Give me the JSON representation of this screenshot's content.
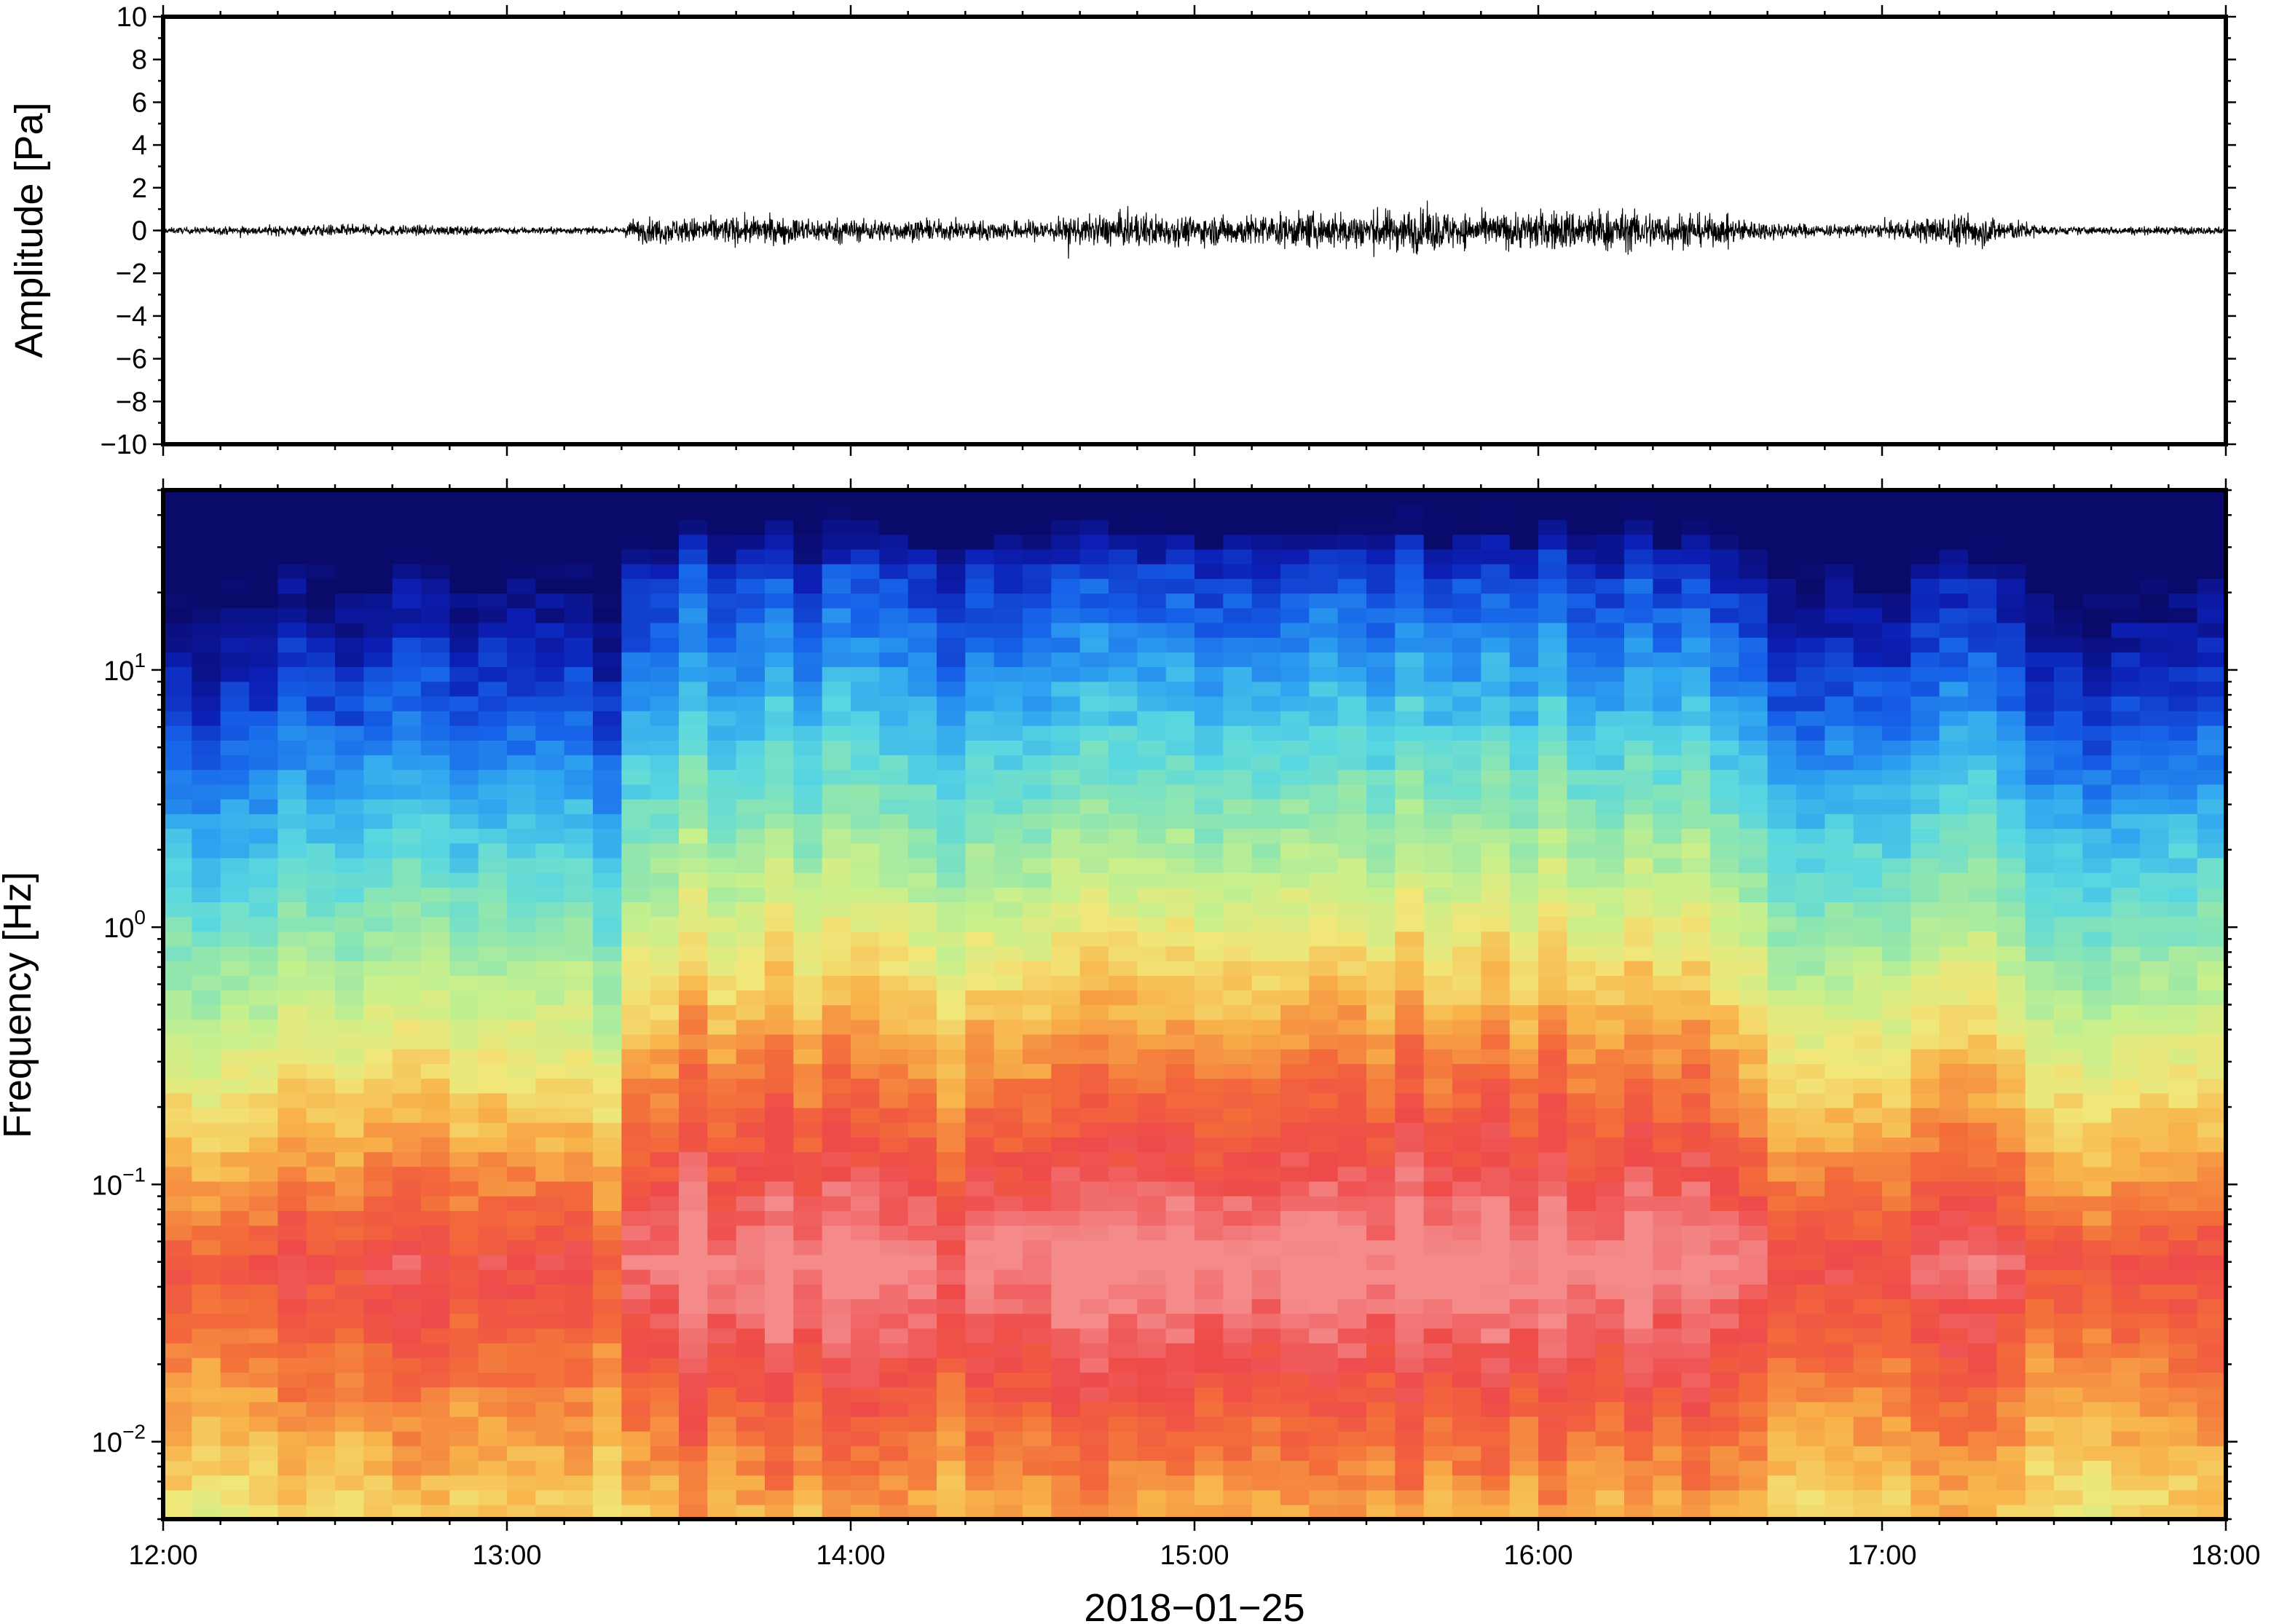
{
  "chart_data": [
    {
      "type": "line",
      "ylabel": "Amplitude [Pa]",
      "ylim": [
        -10,
        10
      ],
      "yticks": [
        "10",
        "8",
        "6",
        "4",
        "2",
        "0",
        "−2",
        "−4",
        "−6",
        "−8",
        "−10"
      ],
      "xlim": [
        "12:00",
        "18:00"
      ],
      "grid": false,
      "series_color": "#000000",
      "envelope_minutes": [
        0,
        30,
        60,
        80,
        82,
        100,
        120,
        130,
        150,
        170,
        180,
        200,
        220,
        230,
        240,
        250,
        265,
        280,
        290,
        300,
        315,
        330,
        345,
        360
      ],
      "envelope_pa": [
        0.15,
        0.3,
        0.2,
        0.15,
        0.6,
        0.7,
        0.6,
        0.5,
        0.5,
        0.9,
        0.7,
        0.9,
        1.1,
        0.8,
        1.0,
        1.1,
        0.9,
        0.45,
        0.3,
        0.35,
        0.9,
        0.2,
        0.2,
        0.2
      ]
    },
    {
      "type": "heatmap",
      "ylabel": "Frequency [Hz]",
      "yscale": "log",
      "ylim_hz": [
        0.005,
        50
      ],
      "yticks": [
        {
          "value": 10,
          "base": "10",
          "exp": "1"
        },
        {
          "value": 1,
          "base": "10",
          "exp": "0"
        },
        {
          "value": 0.1,
          "base": "10",
          "exp": "−1"
        },
        {
          "value": 0.01,
          "base": "10",
          "exp": "−2"
        }
      ],
      "xticks": [
        "12:00",
        "13:00",
        "14:00",
        "15:00",
        "16:00",
        "17:00",
        "18:00"
      ],
      "xlabel": "2018−01−25",
      "colormap": [
        "#0a0a6b",
        "#0c1fb5",
        "#1661e8",
        "#2fa5f0",
        "#5ad8e0",
        "#8ee6b0",
        "#c8f08c",
        "#f2e678",
        "#f8b24a",
        "#f36b3a",
        "#ee4a4a",
        "#f48a8a"
      ],
      "activity_minutes": [
        0,
        30,
        60,
        80,
        82,
        100,
        120,
        130,
        150,
        170,
        180,
        200,
        220,
        230,
        240,
        250,
        265,
        280,
        290,
        300,
        315,
        330,
        345,
        360
      ],
      "activity_level": [
        0.2,
        0.35,
        0.25,
        0.2,
        0.85,
        0.9,
        0.85,
        0.75,
        0.75,
        0.95,
        0.85,
        1.0,
        1.0,
        0.95,
        1.0,
        1.0,
        0.95,
        0.45,
        0.35,
        0.4,
        0.55,
        0.3,
        0.2,
        0.2
      ]
    }
  ]
}
